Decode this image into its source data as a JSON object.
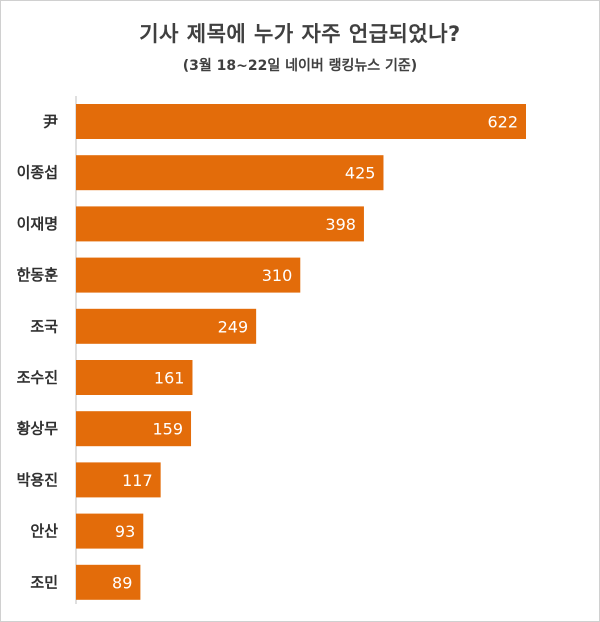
{
  "chart_data": {
    "type": "bar",
    "orientation": "horizontal",
    "title": "기사 제목에 누가 자주 언급되었나?",
    "subtitle": "(3월 18~22일 네이버 랭킹뉴스 기준)",
    "categories": [
      "尹",
      "이종섭",
      "이재명",
      "한동훈",
      "조국",
      "조수진",
      "황상무",
      "박용진",
      "안산",
      "조민"
    ],
    "values": [
      622,
      425,
      398,
      310,
      249,
      161,
      159,
      117,
      93,
      89
    ],
    "xlim": [
      0,
      622
    ],
    "grid": false,
    "legend": "none",
    "bar_color": "#E36C0A"
  }
}
